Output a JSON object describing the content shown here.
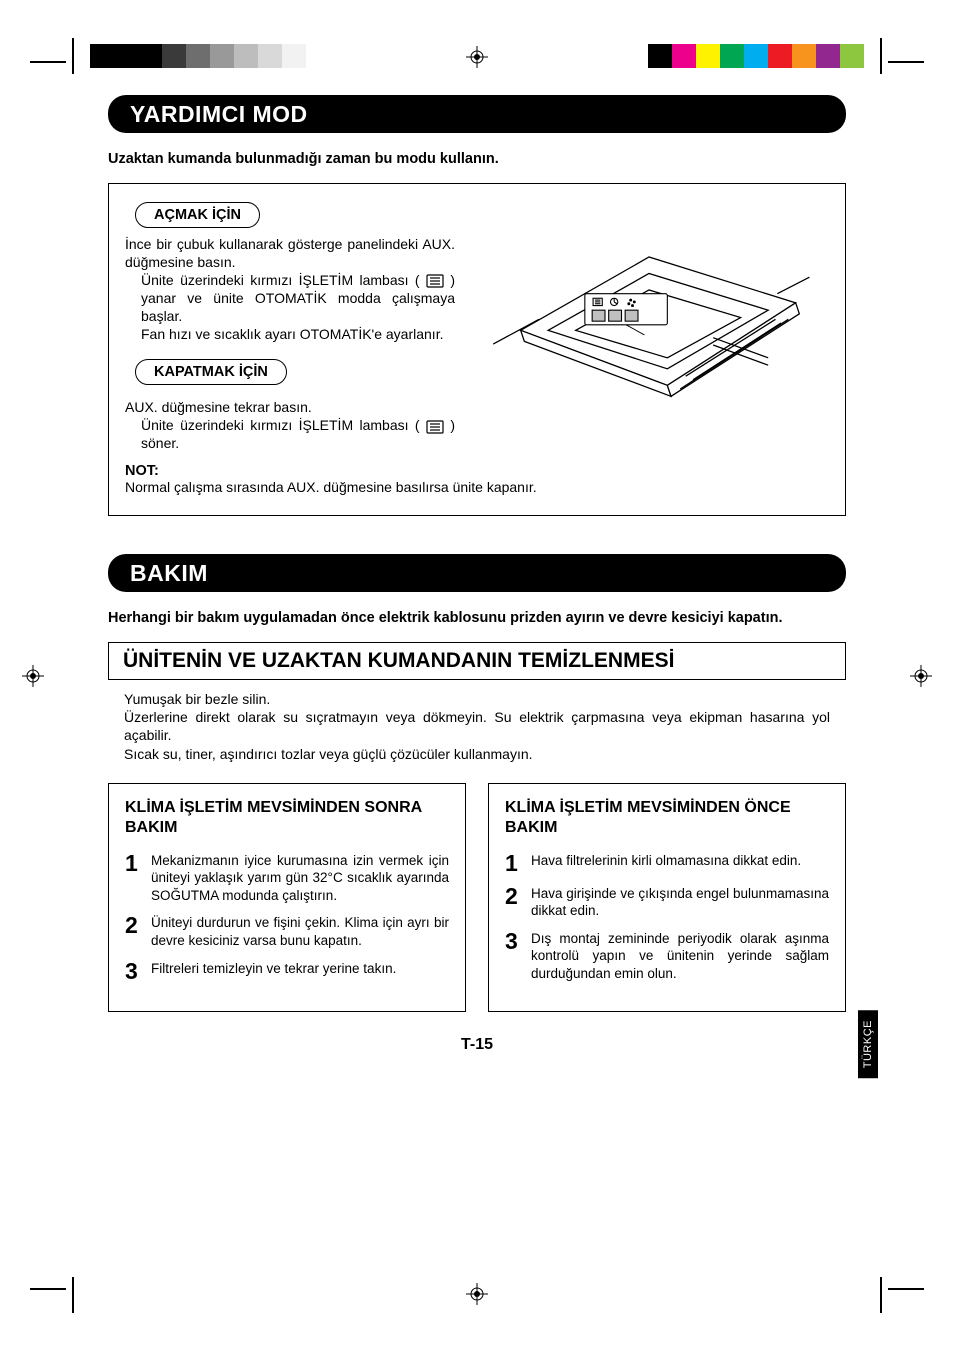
{
  "printmarks": {
    "color_bars_left": [
      "#000000",
      "#000000",
      "#000000",
      "#3a3a3a",
      "#6e6e6e",
      "#999999",
      "#bdbdbd",
      "#d9d9d9",
      "#f2f2f2"
    ],
    "color_bars_right": [
      "#000000",
      "#ec008c",
      "#fff200",
      "#00a651",
      "#00aeef",
      "#ed1c24",
      "#f7941d",
      "#92278f",
      "#8dc63f"
    ]
  },
  "sections": {
    "aux_mode": {
      "header": "YARDIMCI MOD",
      "intro": "Uzaktan kumanda bulunmadığı zaman bu modu kullanın.",
      "on_pill": "AÇMAK İÇİN",
      "on_body1": "İnce bir çubuk kullanarak gösterge panelindeki AUX. düğmesine basın.",
      "on_body2a": "Ünite üzerindeki kırmızı İŞLETİM lambası ( ",
      "on_body2b": " ) yanar ve ünite OTOMATİK modda çalışmaya başlar.",
      "on_body3": "Fan hızı ve sıcaklık ayarı OTOMATİK'e ayarlanır.",
      "off_pill": "KAPATMAK İÇİN",
      "off_body1": "AUX. düğmesine tekrar basın.",
      "off_body2a": "Ünite üzerindeki kırmızı İŞLETİM lambası ( ",
      "off_body2b": " ) söner.",
      "note_label": "NOT:",
      "note_body": "Normal çalışma sırasında AUX. düğmesine basılırsa ünite kapanır."
    },
    "maintenance": {
      "header": "BAKIM",
      "intro": "Herhangi bir bakım uygulamadan önce elektrik kablosunu prizden ayırın ve devre kesiciyi kapatın.",
      "cleaning_header": "ÜNİTENİN VE UZAKTAN KUMANDANIN TEMİZLENMESİ",
      "cleaning_body1": "Yumuşak bir bezle silin.",
      "cleaning_body2": "Üzerlerine direkt olarak su sıçratmayın veya dökmeyin. Su elektrik çarpmasına veya ekipman hasarına yol açabilir.",
      "cleaning_body3": "Sıcak su, tiner, aşındırıcı tozlar veya güçlü çözücüler kullanmayın.",
      "after_season": {
        "title": "KLİMA İŞLETİM MEVSİMİNDEN SONRA BAKIM",
        "items": [
          "Mekanizmanın iyice kurumasına izin vermek için üniteyi yaklaşık yarım gün 32°C sıcaklık ayarında SOĞUTMA modunda çalıştırın.",
          "Üniteyi durdurun ve fişini çekin. Klima için ayrı bir devre kesiciniz varsa bunu  kapatın.",
          "Filtreleri temizleyin ve tekrar yerine takın."
        ]
      },
      "before_season": {
        "title": "KLİMA İŞLETİM MEVSİMİNDEN ÖNCE BAKIM",
        "items": [
          "Hava filtrelerinin kirli olmamasına dikkat edin.",
          "Hava girişinde ve çıkışında engel bulunmamasına dikkat edin.",
          "Dış montaj zemininde periyodik olarak aşınma kontrolü yapın ve ünitenin yerinde sağlam durduğundan emin olun."
        ]
      }
    }
  },
  "page_number": "T-15",
  "side_tab": "TÜRKÇE",
  "diagram": {
    "stroke": "#000000",
    "fill": "#ffffff",
    "button_fill": "#c0c0c0"
  }
}
